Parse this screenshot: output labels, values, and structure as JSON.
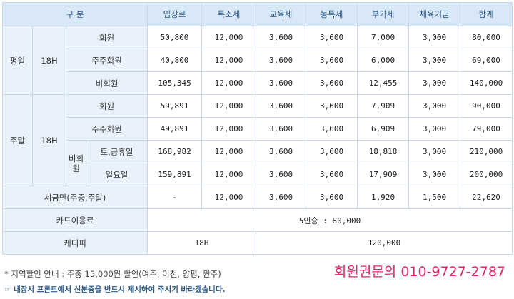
{
  "header": {
    "gubun": "구 분",
    "cols": [
      "입장료",
      "특소세",
      "교육세",
      "농특세",
      "부가세",
      "체육기금",
      "합계"
    ]
  },
  "weekday": {
    "label": "평일",
    "hole": "18H",
    "rows": [
      {
        "type": "회원",
        "values": [
          "50,800",
          "12,000",
          "3,600",
          "3,600",
          "7,000",
          "3,000",
          "80,000"
        ]
      },
      {
        "type": "주주회원",
        "values": [
          "40,800",
          "12,000",
          "3,600",
          "3,600",
          "6,000",
          "3,000",
          "69,000"
        ]
      },
      {
        "type": "비회원",
        "values": [
          "105,345",
          "12,000",
          "3,600",
          "3,600",
          "12,455",
          "3,000",
          "140,000"
        ]
      }
    ]
  },
  "weekend": {
    "label": "주말",
    "hole": "18H",
    "rows": [
      {
        "type": "회원",
        "values": [
          "59,891",
          "12,000",
          "3,600",
          "3,600",
          "7,909",
          "3,000",
          "90,000"
        ]
      },
      {
        "type": "주주회원",
        "values": [
          "49,891",
          "12,000",
          "3,600",
          "3,600",
          "6,909",
          "3,000",
          "79,000"
        ]
      }
    ],
    "nonmember": {
      "label": "비회원",
      "rows": [
        {
          "type": "토,공휴일",
          "values": [
            "168,982",
            "12,000",
            "3,600",
            "3,600",
            "18,818",
            "3,000",
            "210,000"
          ]
        },
        {
          "type": "일요일",
          "values": [
            "159,891",
            "12,000",
            "3,600",
            "3,600",
            "17,909",
            "3,000",
            "200,000"
          ]
        }
      ]
    }
  },
  "tax_only": {
    "label": "세금만(주중,주말)",
    "values": [
      "-",
      "12,000",
      "3,600",
      "3,600",
      "1,920",
      "1,500",
      "22,620"
    ]
  },
  "card": {
    "label": "카드이용료",
    "value": "5인승 : 80,000"
  },
  "caddie": {
    "label": "케디피",
    "hole": "18H",
    "value": "120,000"
  },
  "notes": {
    "line1": "* 지역할인 안내 : 주중 15,000원 할인(여주, 이천, 양평, 원주)",
    "line2": "☞ 내장시 프론트에서 신분증을 반드시 제시하여 주시기 바라겠습니다."
  },
  "contact": "회원권문의 010-9727-2787"
}
